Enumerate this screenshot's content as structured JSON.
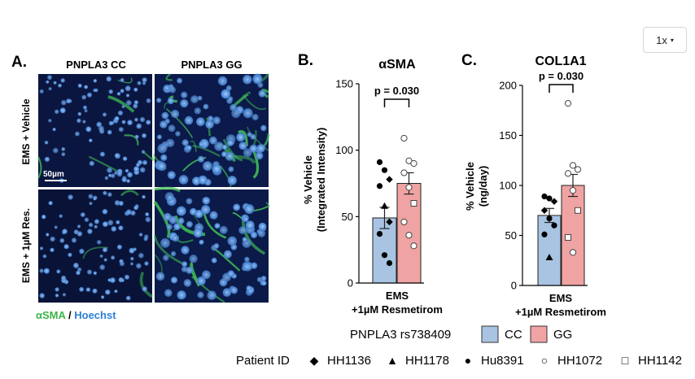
{
  "zoom": {
    "label": "1x",
    "caret": "▾"
  },
  "panel_a": {
    "letter": "A.",
    "col_labels": [
      "PNPLA3 CC",
      "PNPLA3 GG"
    ],
    "row_labels": [
      "EMS + Vehicle",
      "EMS + 1µM Res."
    ],
    "scale_bar": "50µm",
    "legend_sma": "αSMA",
    "legend_sep": " / ",
    "legend_hoechst": "Hoechst"
  },
  "legend": {
    "genotype_label": "PNPLA3 rs738409",
    "cc": "CC",
    "gg": "GG",
    "cc_color": "#a9c4e2",
    "gg_color": "#f0a3a3",
    "patient_label": "Patient ID",
    "patients": [
      {
        "symbol": "◆",
        "id": "HH1136"
      },
      {
        "symbol": "▲",
        "id": "HH1178"
      },
      {
        "symbol": "●",
        "id": "Hu8391"
      },
      {
        "symbol": "○",
        "id": "HH1072"
      },
      {
        "symbol": "□",
        "id": "HH1142"
      }
    ]
  },
  "chart_data": [
    {
      "type": "bar",
      "panel": "B.",
      "title": "αSMA",
      "ylabel": "% Vehicle",
      "ylabel2": "(Integrated Intensity)",
      "xlabel": "EMS",
      "xlabel2": "+1µM Resmetirom",
      "ylim": [
        0,
        150
      ],
      "yticks": [
        0,
        50,
        100,
        150
      ],
      "pvalue": "p = 0.030",
      "series": [
        {
          "name": "CC",
          "value": 49,
          "sem": 8,
          "points": [
            {
              "y": 91,
              "shape": "filled-circle"
            },
            {
              "y": 85,
              "shape": "filled-circle"
            },
            {
              "y": 78,
              "shape": "filled-diamond"
            },
            {
              "y": 73,
              "shape": "filled-circle"
            },
            {
              "y": 58,
              "shape": "filled-triangle"
            },
            {
              "y": 46,
              "shape": "filled-diamond"
            },
            {
              "y": 37,
              "shape": "filled-circle"
            },
            {
              "y": 21,
              "shape": "filled-circle"
            },
            {
              "y": 15,
              "shape": "filled-circle"
            }
          ]
        },
        {
          "name": "GG",
          "value": 75,
          "sem": 8,
          "points": [
            {
              "y": 109,
              "shape": "open-circle"
            },
            {
              "y": 92,
              "shape": "open-circle"
            },
            {
              "y": 90,
              "shape": "open-circle"
            },
            {
              "y": 83,
              "shape": "open-circle"
            },
            {
              "y": 72,
              "shape": "open-circle"
            },
            {
              "y": 60,
              "shape": "open-square"
            },
            {
              "y": 46,
              "shape": "open-circle"
            },
            {
              "y": 36,
              "shape": "open-circle"
            },
            {
              "y": 28,
              "shape": "open-circle"
            }
          ]
        }
      ]
    },
    {
      "type": "bar",
      "panel": "C.",
      "title": "COL1A1",
      "ylabel": "% Vehicle",
      "ylabel2": "(ng/day)",
      "xlabel": "EMS",
      "xlabel2": "+1µM Resmetirom",
      "ylim": [
        0,
        200
      ],
      "yticks": [
        0,
        50,
        100,
        150,
        200
      ],
      "pvalue": "p = 0.030",
      "series": [
        {
          "name": "CC",
          "value": 70,
          "sem": 7,
          "points": [
            {
              "y": 89,
              "shape": "filled-circle"
            },
            {
              "y": 87,
              "shape": "filled-circle"
            },
            {
              "y": 84,
              "shape": "filled-diamond"
            },
            {
              "y": 75,
              "shape": "filled-diamond"
            },
            {
              "y": 67,
              "shape": "filled-circle"
            },
            {
              "y": 60,
              "shape": "filled-circle"
            },
            {
              "y": 51,
              "shape": "filled-circle"
            },
            {
              "y": 28,
              "shape": "filled-triangle"
            }
          ]
        },
        {
          "name": "GG",
          "value": 100,
          "sem": 11,
          "points": [
            {
              "y": 182,
              "shape": "open-circle"
            },
            {
              "y": 120,
              "shape": "open-circle"
            },
            {
              "y": 116,
              "shape": "open-circle"
            },
            {
              "y": 112,
              "shape": "open-circle"
            },
            {
              "y": 95,
              "shape": "open-circle"
            },
            {
              "y": 75,
              "shape": "open-square"
            },
            {
              "y": 48,
              "shape": "open-square"
            },
            {
              "y": 33,
              "shape": "open-circle"
            }
          ]
        }
      ]
    }
  ]
}
